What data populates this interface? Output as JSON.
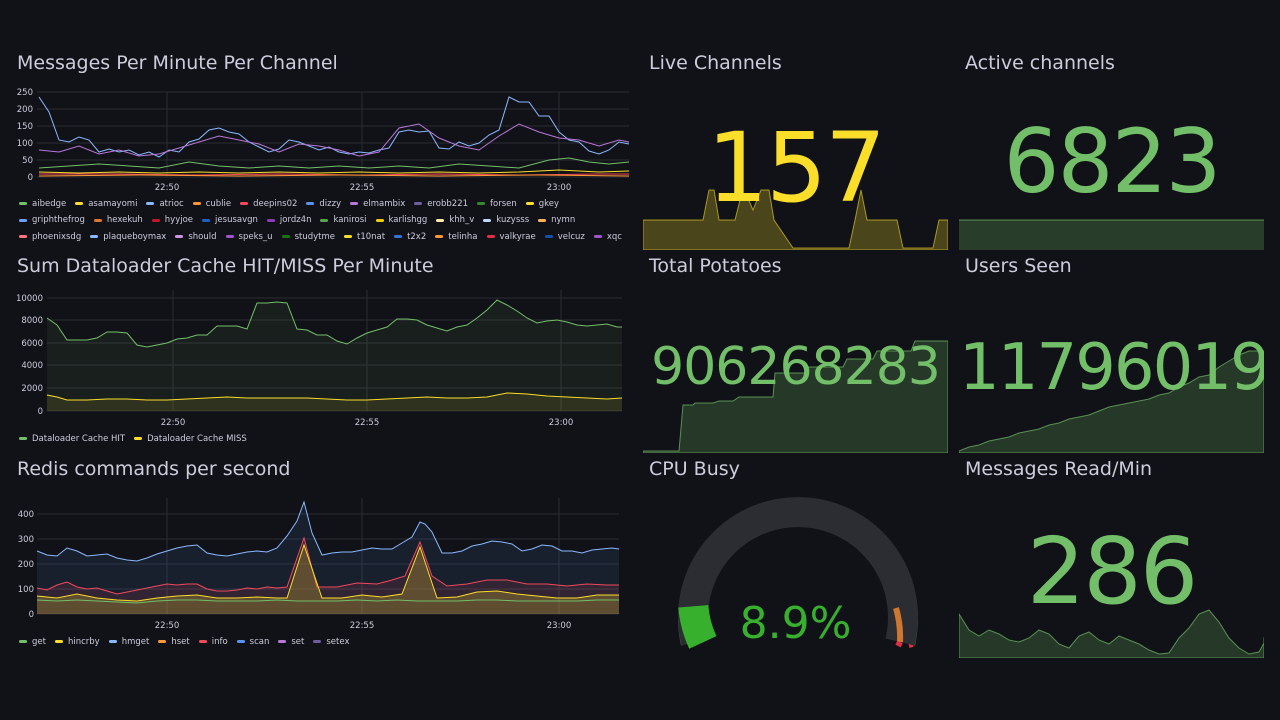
{
  "colors": {
    "green": "#73bf69",
    "yellow": "#fade2a",
    "blue": "#8ab8ff",
    "purple": "#ca95e5",
    "orange": "#ff9830",
    "red": "#f2495c",
    "gauge_green": "#37872d",
    "gauge_orange": "#e07f30",
    "gauge_red": "#e02f44",
    "background": "#111217"
  },
  "messages_panel": {
    "title": "Messages Per Minute Per Channel",
    "y_ticks": [
      "250",
      "200",
      "150",
      "100",
      "50",
      "0"
    ],
    "x_ticks": [
      "22:50",
      "22:55",
      "23:00"
    ],
    "legend": [
      {
        "name": "aibedge",
        "color": "#73bf69"
      },
      {
        "name": "asamayomi",
        "color": "#fade2a"
      },
      {
        "name": "atrioc",
        "color": "#8ab8ff"
      },
      {
        "name": "cublie",
        "color": "#ff9830"
      },
      {
        "name": "deepins02",
        "color": "#f2495c"
      },
      {
        "name": "dizzy",
        "color": "#5794f2"
      },
      {
        "name": "elmambix",
        "color": "#b877d9"
      },
      {
        "name": "erobb221",
        "color": "#705da0"
      },
      {
        "name": "forsen",
        "color": "#37872d"
      },
      {
        "name": "gkey",
        "color": "#fade2a"
      },
      {
        "name": "griphthefrog",
        "color": "#6e9fff"
      },
      {
        "name": "hexekuh",
        "color": "#e0752d"
      },
      {
        "name": "hyyjoe",
        "color": "#c4162a"
      },
      {
        "name": "jesusavgn",
        "color": "#1f60c4"
      },
      {
        "name": "jordz4n",
        "color": "#8f3bb8"
      },
      {
        "name": "kanirosi",
        "color": "#56a64b"
      },
      {
        "name": "karlishgg",
        "color": "#f2cc0c"
      },
      {
        "name": "khh_v",
        "color": "#ffe9a6"
      },
      {
        "name": "kuzysss",
        "color": "#c0d8ff"
      },
      {
        "name": "nymn",
        "color": "#ffb357"
      },
      {
        "name": "phoenixsdg",
        "color": "#ff7383"
      },
      {
        "name": "plaqueboymax",
        "color": "#8ab8ff"
      },
      {
        "name": "should",
        "color": "#ca95e5"
      },
      {
        "name": "speks_u",
        "color": "#a352cc"
      },
      {
        "name": "studytme",
        "color": "#19730e"
      },
      {
        "name": "t10nat",
        "color": "#fade2a"
      },
      {
        "name": "t2x2",
        "color": "#3274d9"
      },
      {
        "name": "telinha",
        "color": "#ff9830"
      },
      {
        "name": "valkyrae",
        "color": "#e02f44"
      },
      {
        "name": "velcuz",
        "color": "#1250b0"
      },
      {
        "name": "xqc",
        "color": "#a352cc"
      }
    ]
  },
  "cache_panel": {
    "title": "Sum Dataloader Cache HIT/MISS Per Minute",
    "y_ticks": [
      "10000",
      "8000",
      "6000",
      "4000",
      "2000",
      "0"
    ],
    "x_ticks": [
      "22:50",
      "22:55",
      "23:00"
    ],
    "legend": [
      {
        "name": "Dataloader Cache HIT",
        "color": "#73bf69"
      },
      {
        "name": "Dataloader Cache MISS",
        "color": "#fade2a"
      }
    ]
  },
  "redis_panel": {
    "title": "Redis commands per second",
    "y_ticks": [
      "400",
      "300",
      "200",
      "100",
      "0"
    ],
    "x_ticks": [
      "22:50",
      "22:55",
      "23:00"
    ],
    "legend": [
      {
        "name": "get",
        "color": "#73bf69"
      },
      {
        "name": "hincrby",
        "color": "#fade2a"
      },
      {
        "name": "hmget",
        "color": "#8ab8ff"
      },
      {
        "name": "hset",
        "color": "#ff9830"
      },
      {
        "name": "info",
        "color": "#f2495c"
      },
      {
        "name": "scan",
        "color": "#5794f2"
      },
      {
        "name": "set",
        "color": "#b877d9"
      },
      {
        "name": "setex",
        "color": "#705da0"
      }
    ]
  },
  "stats": {
    "live_channels": {
      "title": "Live Channels",
      "value": "157"
    },
    "active_channels": {
      "title": "Active channels",
      "value": "6823"
    },
    "total_potatoes": {
      "title": "Total Potatoes",
      "value": "906268283"
    },
    "users_seen": {
      "title": "Users Seen",
      "value": "11796019"
    },
    "cpu_busy": {
      "title": "CPU Busy",
      "value": "8.9%",
      "percent": 8.9
    },
    "messages_read": {
      "title": "Messages Read/Min",
      "value": "286"
    }
  }
}
